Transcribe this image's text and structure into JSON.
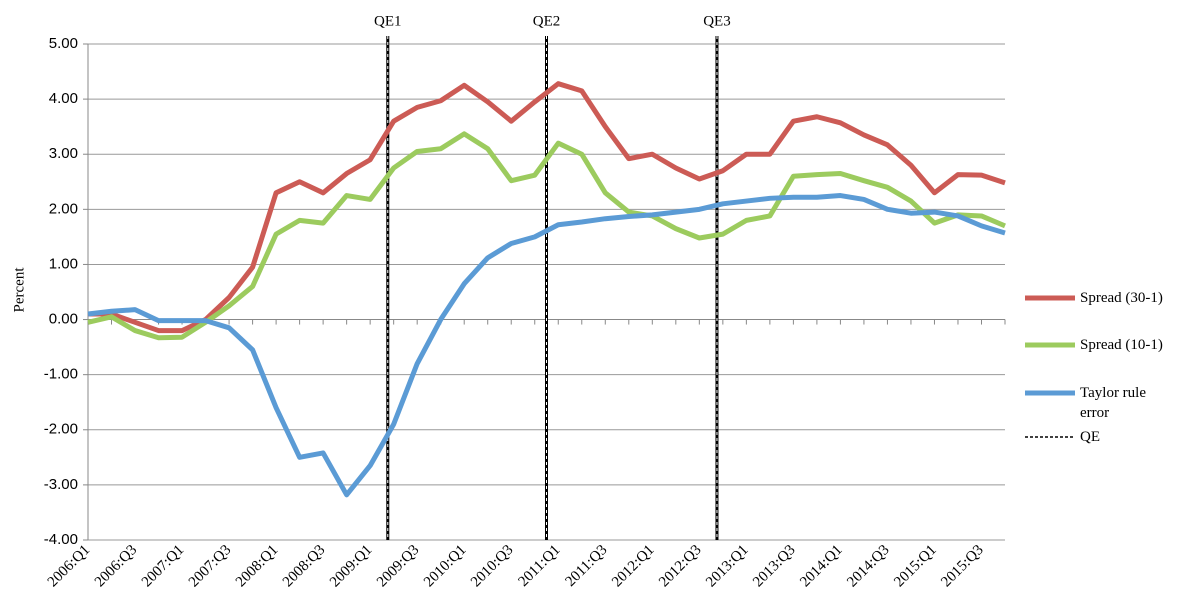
{
  "chart_data": {
    "type": "line",
    "y_label": "Percent",
    "categories": [
      "2006:Q1",
      null,
      "2006:Q3",
      null,
      "2007:Q1",
      null,
      "2007:Q3",
      null,
      "2008:Q1",
      null,
      "2008:Q3",
      null,
      "2009:Q1",
      null,
      "2009:Q3",
      null,
      "2010:Q1",
      null,
      "2010:Q3",
      null,
      "2011:Q1",
      null,
      "2011:Q3",
      null,
      "2012:Q1",
      null,
      "2012:Q3",
      null,
      "2013:Q1",
      null,
      "2013:Q3",
      null,
      "2014:Q1",
      null,
      "2014:Q3",
      null,
      "2015:Q1",
      null,
      "2015:Q3",
      null
    ],
    "series": [
      {
        "name": "Spread (30-1)",
        "color": "#cc5b55",
        "values": [
          0.1,
          0.1,
          -0.05,
          -0.2,
          -0.2,
          0.0,
          0.4,
          0.95,
          2.3,
          2.5,
          2.3,
          2.65,
          2.9,
          3.6,
          3.85,
          3.97,
          4.25,
          3.95,
          3.6,
          3.95,
          4.28,
          4.15,
          3.5,
          2.92,
          3.0,
          2.75,
          2.55,
          2.7,
          3.0,
          3.0,
          3.6,
          3.68,
          3.57,
          3.35,
          3.17,
          2.8,
          2.3,
          2.63,
          2.62,
          2.48
        ]
      },
      {
        "name": "Spread (10-1)",
        "color": "#9ccb5e",
        "values": [
          -0.05,
          0.05,
          -0.2,
          -0.33,
          -0.32,
          -0.05,
          0.25,
          0.6,
          1.55,
          1.8,
          1.75,
          2.25,
          2.18,
          2.75,
          3.05,
          3.1,
          3.37,
          3.1,
          2.52,
          2.62,
          3.2,
          3.0,
          2.3,
          1.95,
          1.88,
          1.65,
          1.48,
          1.55,
          1.8,
          1.88,
          2.6,
          2.63,
          2.65,
          2.52,
          2.4,
          2.15,
          1.75,
          1.9,
          1.88,
          1.7
        ]
      },
      {
        "name": "Taylor rule error",
        "color": "#5b9bd5",
        "values": [
          0.1,
          0.15,
          0.18,
          -0.02,
          -0.02,
          -0.02,
          -0.15,
          -0.55,
          -1.6,
          -2.5,
          -2.42,
          -3.18,
          -2.65,
          -1.9,
          -0.8,
          0.0,
          0.65,
          1.12,
          1.38,
          1.5,
          1.72,
          1.77,
          1.83,
          1.87,
          1.9,
          1.95,
          2.0,
          2.1,
          2.15,
          2.2,
          2.22,
          2.22,
          2.25,
          2.18,
          2.0,
          1.93,
          1.95,
          1.88,
          1.7,
          1.57
        ]
      }
    ],
    "qe_legend": "QE",
    "qe_lines": [
      {
        "label": "QE1",
        "x": 12.75
      },
      {
        "label": "QE2",
        "x": 19.5
      },
      {
        "label": "QE3",
        "x": 26.75
      }
    ],
    "ylim": [
      -4,
      5
    ],
    "yticks": [
      {
        "value": 5,
        "label": "5.00"
      },
      {
        "value": 4,
        "label": "4.00"
      },
      {
        "value": 3,
        "label": "3.00"
      },
      {
        "value": 2,
        "label": "2.00"
      },
      {
        "value": 1,
        "label": "1.00"
      },
      {
        "value": 0,
        "label": "0.00"
      },
      {
        "value": -1,
        "label": "-1.00"
      },
      {
        "value": -2,
        "label": "-2.00"
      },
      {
        "value": -3,
        "label": "-3.00"
      },
      {
        "value": -4,
        "label": "-4.00"
      }
    ],
    "grid": true
  }
}
